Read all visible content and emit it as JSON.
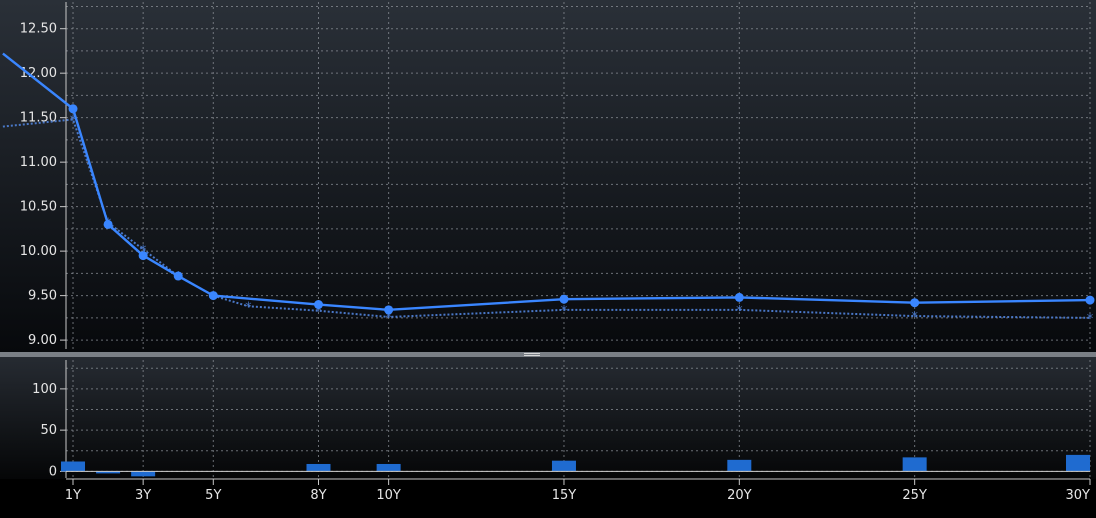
{
  "chart_data": [
    {
      "type": "line",
      "x_labels": [
        "1Y",
        "3Y",
        "5Y",
        "8Y",
        "10Y",
        "15Y",
        "20Y",
        "25Y",
        "30Y"
      ],
      "x_ticks": [
        1,
        3,
        5,
        8,
        10,
        15,
        20,
        25,
        30
      ],
      "xlim": [
        0.8,
        30
      ],
      "ylim": [
        8.9,
        12.8
      ],
      "y_ticks": [
        9.0,
        9.5,
        10.0,
        10.5,
        11.0,
        11.5,
        12.0,
        12.5
      ],
      "y_tick_labels": [
        "9.00",
        "9.50",
        "10.00",
        "10.50",
        "11.00",
        "11.50",
        "12.00",
        "12.50"
      ],
      "grid": true,
      "series": [
        {
          "color": "#3a86ff",
          "style": "solid",
          "marker": "circle",
          "points": [
            [
              -1,
              12.22
            ],
            [
              1,
              11.6
            ],
            [
              2,
              10.3
            ],
            [
              3,
              9.95
            ],
            [
              4,
              9.72
            ],
            [
              5,
              9.5
            ],
            [
              8,
              9.4
            ],
            [
              10,
              9.34
            ],
            [
              15,
              9.46
            ],
            [
              20,
              9.48
            ],
            [
              25,
              9.42
            ],
            [
              30,
              9.45
            ]
          ]
        },
        {
          "color": "#4a78c8",
          "style": "dotted",
          "marker": "star",
          "points": [
            [
              -1,
              11.4
            ],
            [
              1,
              11.48
            ],
            [
              2,
              10.32
            ],
            [
              3,
              10.02
            ],
            [
              4,
              9.72
            ],
            [
              5,
              9.5
            ],
            [
              6,
              9.38
            ],
            [
              8,
              9.33
            ],
            [
              10,
              9.26
            ],
            [
              15,
              9.34
            ],
            [
              20,
              9.34
            ],
            [
              25,
              9.27
            ],
            [
              30,
              9.25
            ]
          ]
        }
      ]
    },
    {
      "type": "bar",
      "x": [
        1,
        2,
        3,
        8,
        10,
        15,
        20,
        25,
        30
      ],
      "values": [
        12,
        -2,
        -6,
        9,
        9,
        13,
        14,
        17,
        20
      ],
      "ylim": [
        -8,
        135
      ],
      "y_ticks": [
        0,
        50,
        100
      ],
      "y_tick_labels": [
        "0",
        "50",
        "100"
      ],
      "grid": true,
      "color": "#1f6bd0"
    }
  ]
}
